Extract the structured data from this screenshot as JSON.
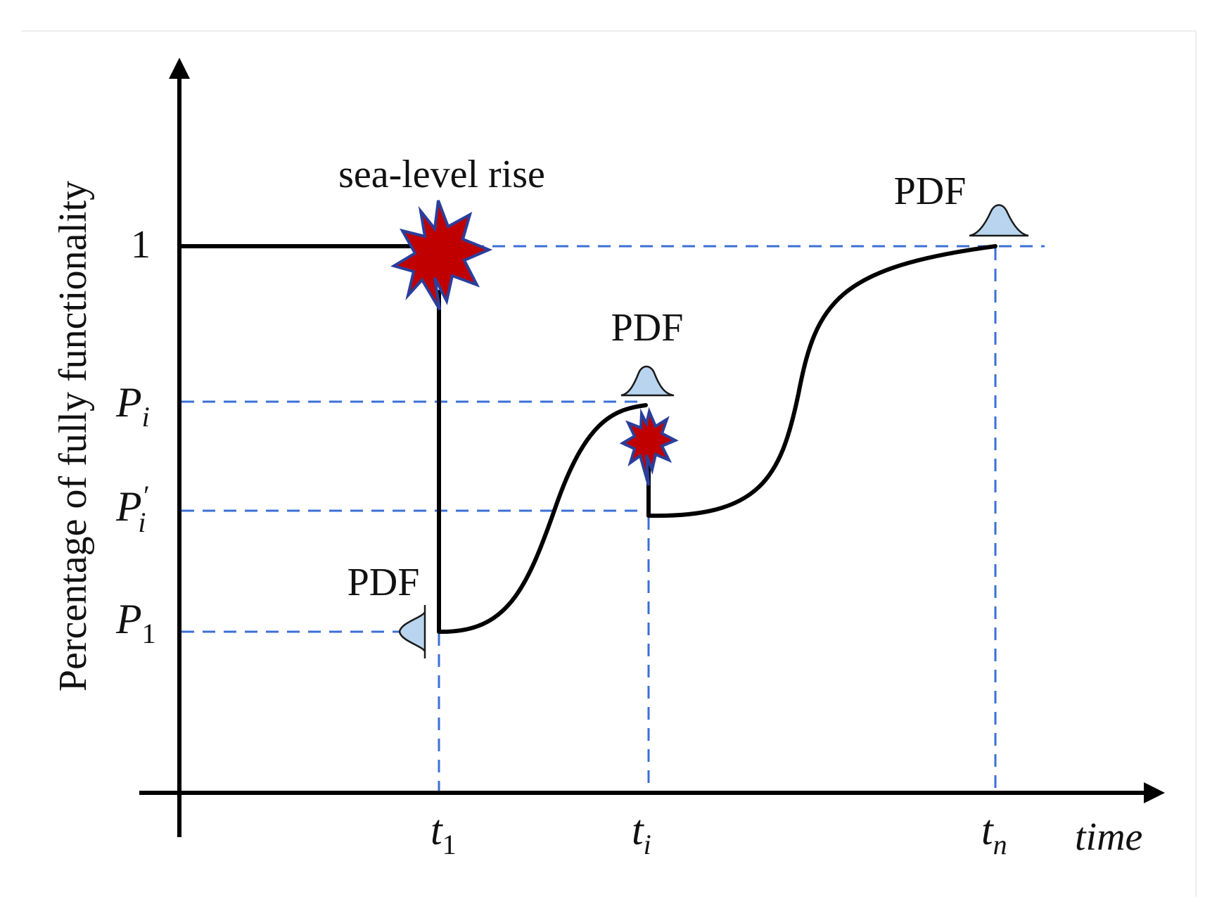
{
  "diagram": {
    "y_axis_label": "Percentage of fully functionality",
    "x_axis_label": "time",
    "y_ticks": {
      "one": "1",
      "p_i": {
        "base": "P",
        "sub": "i"
      },
      "p_i_prime": {
        "base": "P",
        "sub": "i",
        "prime": "′"
      },
      "p_1": {
        "base": "P",
        "sub": "1"
      }
    },
    "x_ticks": {
      "t_1": {
        "base": "t",
        "sub": "1"
      },
      "t_i": {
        "base": "t",
        "sub": "i"
      },
      "t_n": {
        "base": "t",
        "sub": "n"
      }
    },
    "event_label": "sea-level rise",
    "pdf_labels": {
      "first": "PDF",
      "middle": "PDF",
      "last": "PDF"
    },
    "colors": {
      "curve": "#000000",
      "guide_lines": "#3b6fd6",
      "burst_fill": "#c00000",
      "burst_outline": "#2a3f9c",
      "pdf_fill": "#b8d4ee"
    }
  }
}
